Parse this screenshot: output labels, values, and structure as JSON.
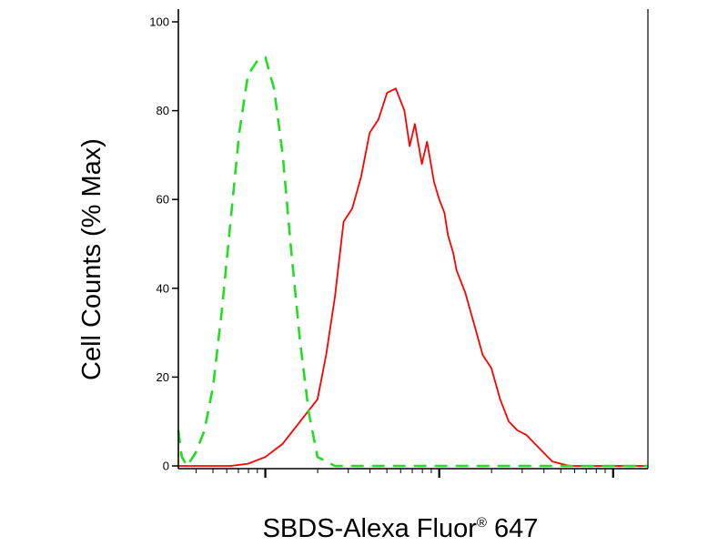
{
  "chart_data": {
    "type": "line",
    "title": "",
    "xlabel": "SBDS-Alexa Fluor",
    "xlabel_superscript": "®",
    "xlabel_suffix": " 647",
    "ylabel": "Cell Counts (% Max)",
    "x_scale": "log",
    "xlim": [
      -0.5,
      2.2
    ],
    "ylim": [
      0,
      100
    ],
    "y_ticks": [
      "0",
      "20",
      "40",
      "60",
      "80",
      "100"
    ],
    "y_tick_values": [
      0,
      20,
      40,
      60,
      80,
      100
    ],
    "x_major_ticks": [
      0,
      1,
      2
    ],
    "grid": false,
    "legend": "none",
    "series": [
      {
        "color": "#ff0000",
        "dash": "solid",
        "x": [
          -0.5,
          -0.35,
          -0.2,
          -0.1,
          0,
          0.1,
          0.2,
          0.3,
          0.35,
          0.4,
          0.45,
          0.5,
          0.55,
          0.6,
          0.65,
          0.7,
          0.75,
          0.8,
          0.83,
          0.86,
          0.9,
          0.93,
          0.97,
          1.0,
          1.03,
          1.05,
          1.08,
          1.1,
          1.15,
          1.2,
          1.25,
          1.3,
          1.35,
          1.4,
          1.45,
          1.5,
          1.55,
          1.6,
          1.65,
          1.7,
          1.75,
          1.8,
          1.85,
          1.9,
          2.0,
          2.2
        ],
        "y": [
          0,
          0,
          0,
          0.5,
          2,
          5,
          10,
          15,
          25,
          38,
          55,
          58,
          65,
          75,
          78,
          84,
          85,
          80,
          72,
          77,
          68,
          73,
          64,
          60,
          57,
          52,
          48,
          44,
          39,
          32,
          25,
          22,
          15,
          10,
          8,
          7,
          5,
          3,
          1,
          0.5,
          0,
          0,
          0,
          0,
          0,
          0
        ]
      },
      {
        "color": "#22dd22",
        "dash": "dashed",
        "x": [
          -0.5,
          -0.48,
          -0.45,
          -0.4,
          -0.35,
          -0.3,
          -0.25,
          -0.2,
          -0.15,
          -0.1,
          -0.05,
          0,
          0.05,
          0.1,
          0.15,
          0.2,
          0.25,
          0.3,
          0.4,
          0.6,
          1.0,
          1.5,
          2.0,
          2.2
        ],
        "y": [
          8,
          2,
          0,
          3,
          8,
          18,
          35,
          55,
          75,
          88,
          91,
          92,
          85,
          70,
          48,
          28,
          12,
          2,
          0,
          0,
          0,
          0,
          0,
          0
        ]
      }
    ]
  }
}
